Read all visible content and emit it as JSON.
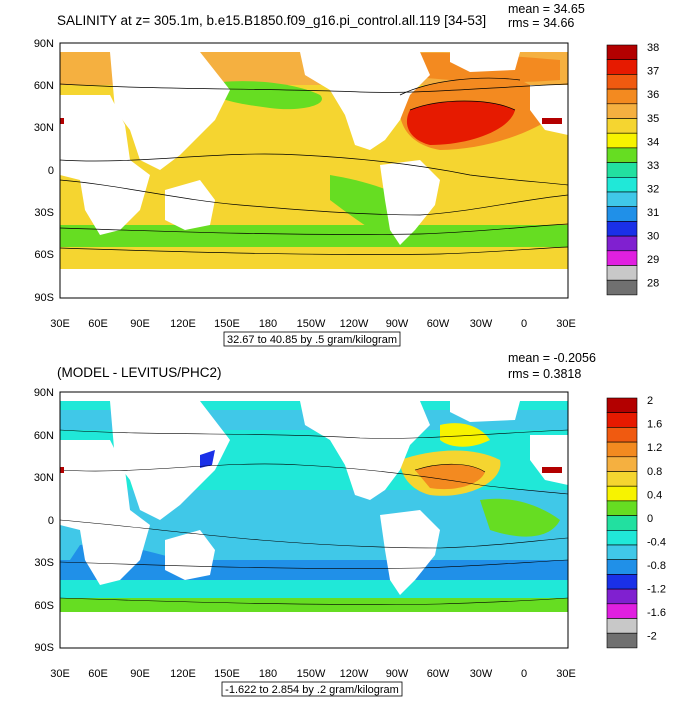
{
  "panels": [
    {
      "title": "SALINITY at z= 305.1m, b.e15.B1850.f09_g16.pi_control.all.119 [34-53]",
      "stats": {
        "mean": "mean = 34.65",
        "rms": "rms = 34.66"
      },
      "range_label": "32.67 to 40.85 by .5 gram/kilogram",
      "x_ticks": [
        "30E",
        "60E",
        "90E",
        "120E",
        "150E",
        "180",
        "150W",
        "120W",
        "90W",
        "60W",
        "30W",
        "0",
        "30E"
      ],
      "y_ticks": [
        "90N",
        "60N",
        "30N",
        "0",
        "30S",
        "60S",
        "90S"
      ],
      "colorbar": {
        "labels": [
          "38",
          "37",
          "36",
          "35",
          "34",
          "33",
          "32",
          "31",
          "30",
          "29",
          "28"
        ],
        "colors": [
          "#b30000",
          "#e61a00",
          "#f05a10",
          "#f38a20",
          "#f5b040",
          "#f5d530",
          "#f7f300",
          "#66dd22",
          "#22e0a0",
          "#20e8d8",
          "#40c8e8",
          "#2090e8",
          "#1a30e8",
          "#8020d0",
          "#e020e0",
          "#c8c8c8",
          "#707070"
        ]
      }
    },
    {
      "title": "(MODEL - LEVITUS/PHC2)",
      "stats": {
        "mean": "mean = -0.2056",
        "rms": "rms = 0.3818"
      },
      "range_label": "-1.622 to 2.854 by .2 gram/kilogram",
      "x_ticks": [
        "30E",
        "60E",
        "90E",
        "120E",
        "150E",
        "180",
        "150W",
        "120W",
        "90W",
        "60W",
        "30W",
        "0",
        "30E"
      ],
      "y_ticks": [
        "90N",
        "60N",
        "30N",
        "0",
        "30S",
        "60S",
        "90S"
      ],
      "colorbar": {
        "labels": [
          "2",
          "1.6",
          "1.2",
          "0.8",
          "0.4",
          "0",
          "-0.4",
          "-0.8",
          "-1.2",
          "-1.6",
          "-2"
        ],
        "colors": [
          "#b30000",
          "#e61a00",
          "#f05a10",
          "#f38a20",
          "#f5b040",
          "#f5d530",
          "#f7f300",
          "#66dd22",
          "#22e0a0",
          "#20e8d8",
          "#40c8e8",
          "#2090e8",
          "#1a30e8",
          "#8020d0",
          "#e020e0",
          "#c8c8c8",
          "#707070"
        ]
      }
    }
  ]
}
